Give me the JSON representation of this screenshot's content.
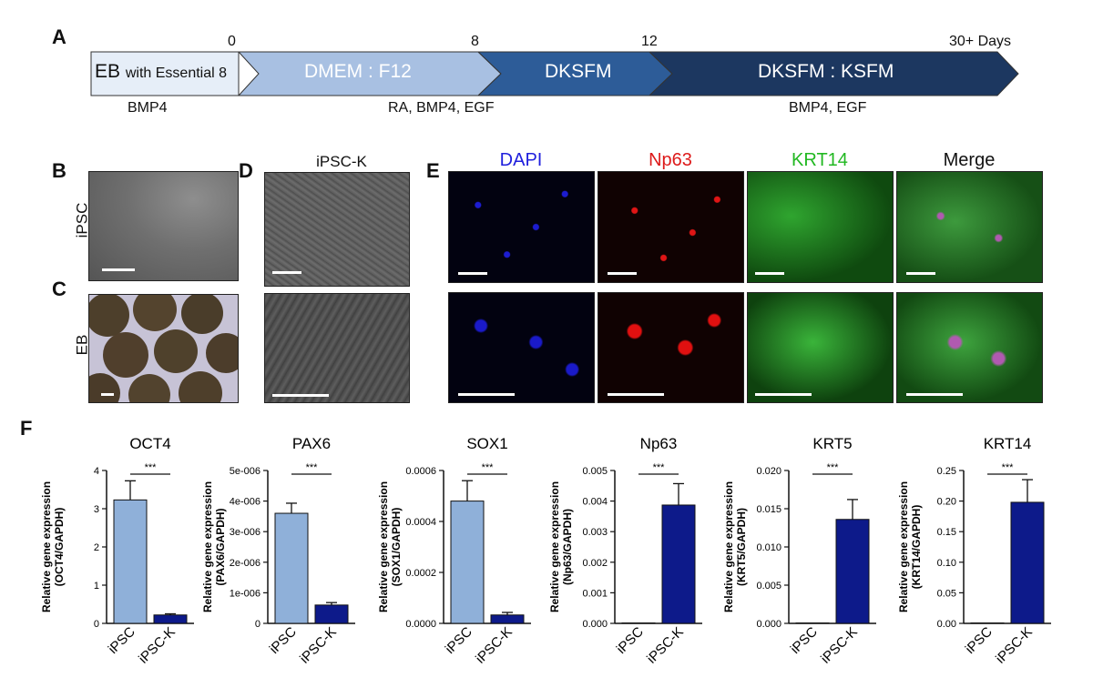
{
  "panel_labels": {
    "a": "A",
    "b": "B",
    "c": "C",
    "d": "D",
    "e": "E",
    "f": "F"
  },
  "timeline": {
    "day_ticks": [
      "0",
      "8",
      "12",
      "30+ Days"
    ],
    "segments": [
      {
        "main": "EB",
        "sub": "with Essential 8",
        "color": "#e6eef8"
      },
      {
        "main": "DMEM : F12",
        "sub": "",
        "color": "#a8c0e2"
      },
      {
        "main": "DKSFM",
        "sub": "",
        "color": "#2d5c98"
      },
      {
        "main": "DKSFM : KSFM",
        "sub": "",
        "color": "#1c3760"
      }
    ],
    "factors": [
      "BMP4",
      "RA, BMP4, EGF",
      "BMP4, EGF"
    ]
  },
  "microscopy": {
    "row_labels": [
      "iPSC",
      "EB"
    ],
    "d_title": "iPSC-K",
    "channels": [
      {
        "label": "DAPI",
        "color": "#2020dd"
      },
      {
        "label": "Np63",
        "color": "#dd1a1a"
      },
      {
        "label": "KRT14",
        "color": "#21b821"
      },
      {
        "label": "Merge",
        "color": "#111111"
      }
    ]
  },
  "chart_data": [
    {
      "type": "bar",
      "title": "OCT4",
      "ylabel": "Relative gene expression (OCT4/GAPDH)",
      "categories": [
        "iPSC",
        "iPSC-K"
      ],
      "values": [
        3.23,
        0.22
      ],
      "errors": [
        0.5,
        0.03
      ],
      "ylim": [
        0,
        4
      ],
      "ticks": [
        "0",
        "1",
        "2",
        "3",
        "4"
      ],
      "significance": "***"
    },
    {
      "type": "bar",
      "title": "PAX6",
      "ylabel": "Relative gene expression (PAX6/GAPDH)",
      "categories": [
        "iPSC",
        "iPSC-K"
      ],
      "values": [
        3.6e-06,
        6e-07
      ],
      "errors": [
        3.3e-07,
        8e-08
      ],
      "ylim": [
        0,
        5e-06
      ],
      "ticks": [
        "0",
        "1e-006",
        "2e-006",
        "3e-006",
        "4e-006",
        "5e-006"
      ],
      "significance": "***"
    },
    {
      "type": "bar",
      "title": "SOX1",
      "ylabel": "Relative gene expression (SOX1/GAPDH)",
      "categories": [
        "iPSC",
        "iPSC-K"
      ],
      "values": [
        0.00048,
        3.3e-05
      ],
      "errors": [
        8e-05,
        1e-05
      ],
      "ylim": [
        0,
        0.0006
      ],
      "ticks": [
        "0.0000",
        "0.0002",
        "0.0004",
        "0.0006"
      ],
      "significance": "***"
    },
    {
      "type": "bar",
      "title": "Np63",
      "ylabel": "Relative gene expression (Np63/GAPDH)",
      "categories": [
        "iPSC",
        "iPSC-K"
      ],
      "values": [
        0,
        0.00387
      ],
      "errors": [
        0,
        0.0007
      ],
      "ylim": [
        0,
        0.005
      ],
      "ticks": [
        "0.000",
        "0.001",
        "0.002",
        "0.003",
        "0.004",
        "0.005"
      ],
      "significance": "***"
    },
    {
      "type": "bar",
      "title": "KRT5",
      "ylabel": "Relative gene expression (KRT5/GAPDH)",
      "categories": [
        "iPSC",
        "iPSC-K"
      ],
      "values": [
        5e-05,
        0.0136
      ],
      "errors": [
        0,
        0.0026
      ],
      "ylim": [
        0,
        0.02
      ],
      "ticks": [
        "0.000",
        "0.005",
        "0.010",
        "0.015",
        "0.020"
      ],
      "significance": "***"
    },
    {
      "type": "bar",
      "title": "KRT14",
      "ylabel": "Relative gene expression (KRT14/GAPDH)",
      "categories": [
        "iPSC",
        "iPSC-K"
      ],
      "values": [
        0,
        0.198
      ],
      "errors": [
        0,
        0.037
      ],
      "ylim": [
        0,
        0.25
      ],
      "ticks": [
        "0.00",
        "0.05",
        "0.10",
        "0.15",
        "0.20",
        "0.25"
      ],
      "significance": "***"
    }
  ],
  "colors": {
    "bar_ipsc": "#8fb0d9",
    "bar_ipsck": "#0d1a8a"
  }
}
